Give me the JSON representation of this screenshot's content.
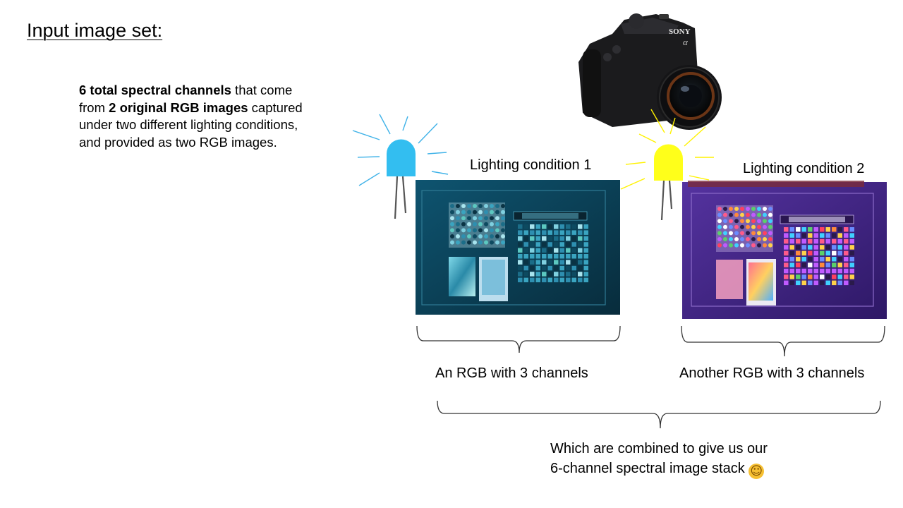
{
  "title": "Input image set:",
  "description": {
    "part1_bold": "6 total spectral channels",
    "part2": " that come from ",
    "part3_bold": "2 original RGB images",
    "part4": " captured under two different lighting conditions, and provided as two RGB images."
  },
  "lighting": [
    {
      "label": "Lighting condition 1",
      "bulb_color": "#33bef0",
      "image_tint": "#0c4a66"
    },
    {
      "label": "Lighting condition 2",
      "bulb_color": "#ffff1a",
      "image_tint": "#4a2a8c"
    }
  ],
  "captions": {
    "rgb1": "An RGB with 3 channels",
    "rgb2": "Another RGB with 3 channels",
    "combined_line1": "Which are combined to give us our",
    "combined_line2": "6-channel spectral image stack",
    "emoji": "☺"
  },
  "camera": {
    "brand": "SONY",
    "model_glyph": "α"
  }
}
